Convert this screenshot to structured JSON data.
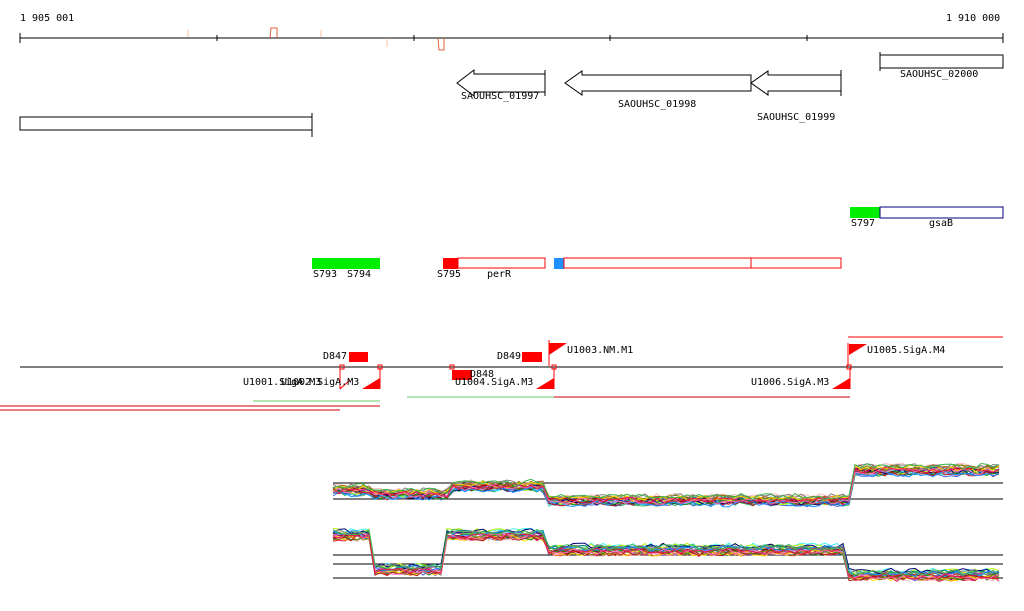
{
  "ruler": {
    "start_label": "1 905 001",
    "end_label": "1 910 000"
  },
  "genes": [
    {
      "label": "SAOUHSC_01997",
      "strand": "-"
    },
    {
      "label": "SAOUHSC_01998",
      "strand": "-"
    },
    {
      "label": "SAOUHSC_01999",
      "strand": "-"
    },
    {
      "label": "SAOUHSC_02000",
      "strand": "+"
    }
  ],
  "segments": [
    {
      "id": "S793",
      "color": "#00ee00"
    },
    {
      "id": "S794",
      "color": "#00ee00"
    },
    {
      "id": "S795",
      "color": "#ff0000",
      "gene": "perR"
    },
    {
      "id": "S797",
      "color": "#00ee00",
      "gene": "gsaB"
    }
  ],
  "promoters": [
    {
      "label": "U1001.SigA.M3"
    },
    {
      "label": "U1002.SigA.M3"
    },
    {
      "label": "U1003.NM.M1"
    },
    {
      "label": "U1004.SigA.M3"
    },
    {
      "label": "U1005.SigA.M4"
    },
    {
      "label": "U1006.SigA.M3"
    }
  ],
  "terminators": [
    {
      "label": "D847"
    },
    {
      "label": "D848"
    },
    {
      "label": "D849"
    }
  ],
  "colors": {
    "red": "#ff0000",
    "green": "#00ee00",
    "blue": "#1e90ff",
    "dark_red": "#cc0000",
    "light_green": "#66cc66"
  }
}
